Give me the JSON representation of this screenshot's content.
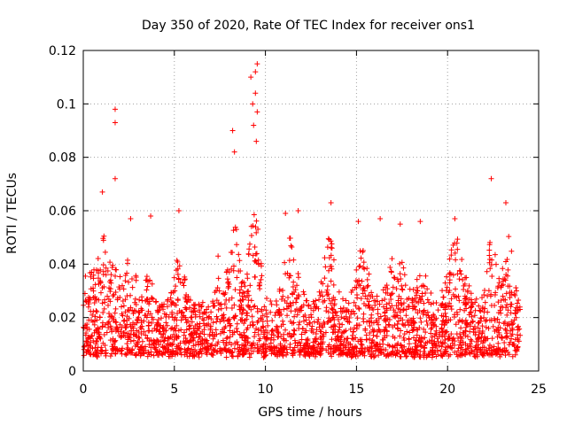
{
  "chart_data": {
    "type": "scatter",
    "title": "Day 350 of 2020, Rate Of TEC Index for receiver ons1",
    "xlabel": "GPS time / hours",
    "ylabel": "ROTI / TECUs",
    "xlim": [
      0,
      25
    ],
    "ylim": [
      0,
      0.12
    ],
    "xticks": [
      0,
      5,
      10,
      15,
      20,
      25
    ],
    "xtick_labels": [
      "0",
      "5",
      "10",
      "15",
      "20",
      "25"
    ],
    "yticks": [
      0,
      0.02,
      0.04,
      0.06,
      0.08,
      0.1,
      0.12
    ],
    "ytick_labels": [
      "0",
      "0.02",
      "0.04",
      "0.06",
      "0.08",
      "0.1",
      "0.12"
    ],
    "grid": true,
    "marker": "+",
    "color": "#ff0000",
    "data_x_range": [
      0,
      24
    ],
    "baseline_band": [
      0.005,
      0.03
    ],
    "peaks": [
      {
        "x": 1.05,
        "y": 0.067
      },
      {
        "x": 1.75,
        "y": 0.098
      },
      {
        "x": 1.75,
        "y": 0.093
      },
      {
        "x": 1.75,
        "y": 0.072
      },
      {
        "x": 2.6,
        "y": 0.057
      },
      {
        "x": 3.7,
        "y": 0.058
      },
      {
        "x": 5.25,
        "y": 0.06
      },
      {
        "x": 7.4,
        "y": 0.043
      },
      {
        "x": 8.2,
        "y": 0.09
      },
      {
        "x": 8.3,
        "y": 0.082
      },
      {
        "x": 9.2,
        "y": 0.11
      },
      {
        "x": 9.45,
        "y": 0.112
      },
      {
        "x": 9.55,
        "y": 0.115
      },
      {
        "x": 9.45,
        "y": 0.104
      },
      {
        "x": 9.3,
        "y": 0.1
      },
      {
        "x": 9.55,
        "y": 0.097
      },
      {
        "x": 9.35,
        "y": 0.092
      },
      {
        "x": 9.5,
        "y": 0.086
      },
      {
        "x": 11.1,
        "y": 0.059
      },
      {
        "x": 11.8,
        "y": 0.06
      },
      {
        "x": 13.6,
        "y": 0.063
      },
      {
        "x": 15.1,
        "y": 0.056
      },
      {
        "x": 16.3,
        "y": 0.057
      },
      {
        "x": 17.4,
        "y": 0.055
      },
      {
        "x": 18.5,
        "y": 0.056
      },
      {
        "x": 20.4,
        "y": 0.057
      },
      {
        "x": 22.4,
        "y": 0.072
      },
      {
        "x": 23.2,
        "y": 0.063
      }
    ]
  }
}
